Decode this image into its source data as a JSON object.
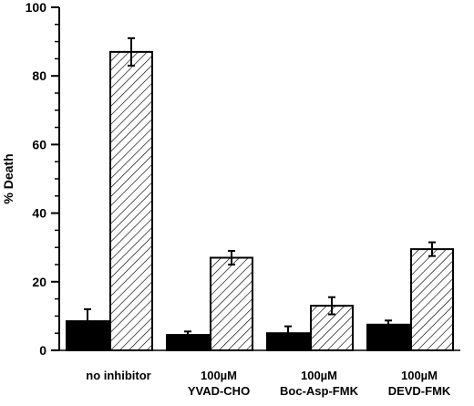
{
  "chart_data": {
    "type": "bar",
    "title": "",
    "ylabel": "% Death",
    "xlabel": "",
    "ylim": [
      0,
      100
    ],
    "yticks": [
      0,
      20,
      40,
      60,
      80,
      100
    ],
    "grid": false,
    "categories": [
      {
        "line1": "no inhibitor",
        "line2": ""
      },
      {
        "line1": "100µM",
        "line2": "YVAD-CHO"
      },
      {
        "line1": "100µM",
        "line2": "Boc-Asp-FMK"
      },
      {
        "line1": "100µM",
        "line2": "DEVD-FMK"
      }
    ],
    "series": [
      {
        "fill": "solid-black",
        "values": [
          8.5,
          4.5,
          5.0,
          7.5
        ],
        "errors": [
          3.5,
          1.0,
          2.0,
          1.2
        ]
      },
      {
        "fill": "diagonal-hatch",
        "values": [
          87,
          27,
          13,
          29.5
        ],
        "errors": [
          4.0,
          2.0,
          2.5,
          2.0
        ]
      }
    ],
    "colors": {
      "axis": "#000000",
      "solid": "#000000",
      "hatch_bg": "#ffffff",
      "hatch_line": "#000000"
    }
  }
}
